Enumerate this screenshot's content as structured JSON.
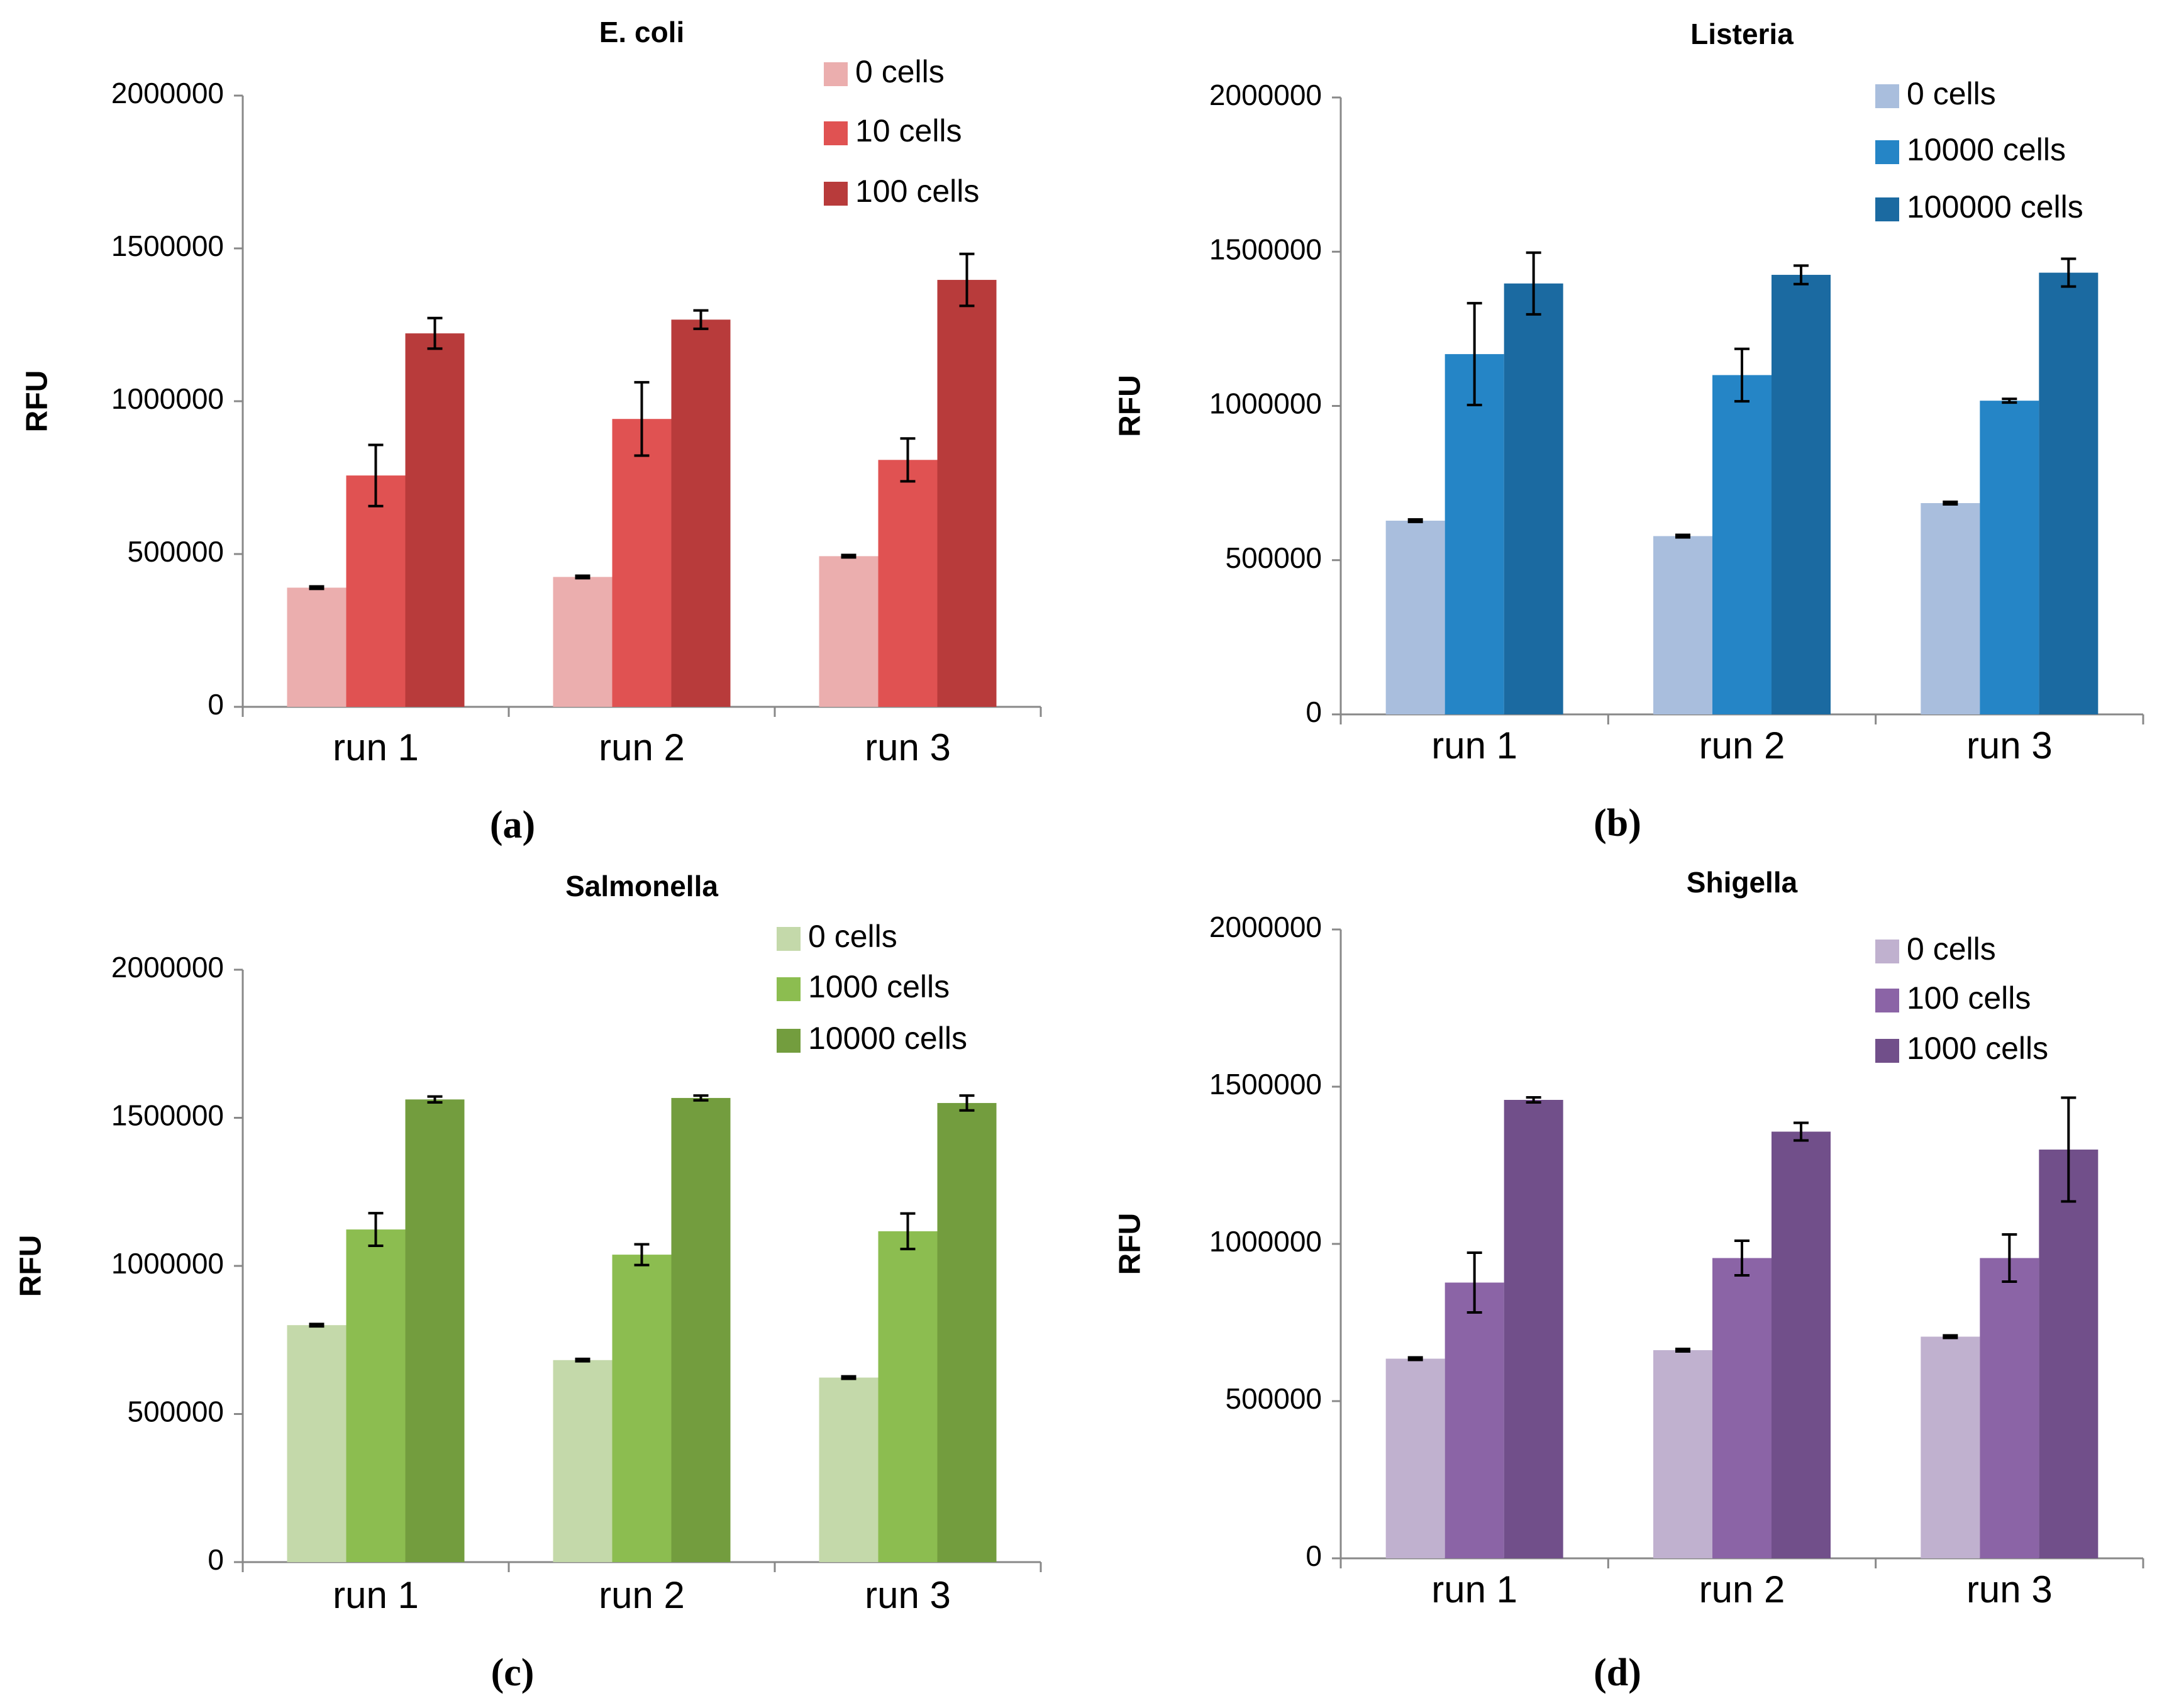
{
  "figure": {
    "panel_labels": [
      "(a)",
      "(b)",
      "(c)",
      "(d)"
    ]
  },
  "chart_data": [
    {
      "type": "bar",
      "panel": "(a)",
      "title": "E. coli",
      "xlabel": "",
      "ylabel": "RFU",
      "ylim": [
        0,
        2000000
      ],
      "yticks": [
        0,
        500000,
        1000000,
        1500000,
        2000000
      ],
      "ytick_labels": [
        "0",
        "500000",
        "1000000",
        "1500000",
        "2000000"
      ],
      "categories": [
        "run 1",
        "run 2",
        "run 3"
      ],
      "grid": false,
      "legend_position": "top-right",
      "series": [
        {
          "name": "0 cells",
          "color": "#EBAEAE",
          "values": [
            390000,
            425000,
            493000
          ],
          "errors": [
            4000,
            4000,
            4000
          ]
        },
        {
          "name": "10 cells",
          "color": "#E05252",
          "values": [
            757000,
            942000,
            808000
          ],
          "errors": [
            100000,
            120000,
            70000
          ]
        },
        {
          "name": "100 cells",
          "color": "#B83B3B",
          "values": [
            1222000,
            1267000,
            1397000
          ],
          "errors": [
            50000,
            30000,
            85000
          ]
        }
      ]
    },
    {
      "type": "bar",
      "panel": "(b)",
      "title": "Listeria",
      "xlabel": "",
      "ylabel": "RFU",
      "ylim": [
        0,
        2000000
      ],
      "yticks": [
        0,
        500000,
        1000000,
        1500000,
        2000000
      ],
      "ytick_labels": [
        "0",
        "500000",
        "1000000",
        "1500000",
        "2000000"
      ],
      "categories": [
        "run 1",
        "run 2",
        "run 3"
      ],
      "grid": false,
      "legend_position": "top-right",
      "series": [
        {
          "name": "0 cells",
          "color": "#A9BEDD",
          "values": [
            628000,
            578000,
            685000
          ],
          "errors": [
            4000,
            4000,
            4000
          ]
        },
        {
          "name": "10000 cells",
          "color": "#2585C6",
          "values": [
            1168000,
            1100000,
            1017000
          ],
          "errors": [
            165000,
            85000,
            6000
          ]
        },
        {
          "name": "100000 cells",
          "color": "#1B6AA1",
          "values": [
            1397000,
            1425000,
            1432000
          ],
          "errors": [
            100000,
            30000,
            45000
          ]
        }
      ]
    },
    {
      "type": "bar",
      "panel": "(c)",
      "title": "Salmonella",
      "xlabel": "",
      "ylabel": "RFU",
      "ylim": [
        0,
        2000000
      ],
      "yticks": [
        0,
        500000,
        1000000,
        1500000,
        2000000
      ],
      "ytick_labels": [
        "0",
        "500000",
        "1000000",
        "1500000",
        "2000000"
      ],
      "categories": [
        "run 1",
        "run 2",
        "run 3"
      ],
      "grid": false,
      "legend_position": "top-right",
      "series": [
        {
          "name": "0 cells",
          "color": "#C4D9AA",
          "values": [
            800000,
            682000,
            623000
          ],
          "errors": [
            4000,
            4000,
            4000
          ]
        },
        {
          "name": "1000 cells",
          "color": "#8CBD50",
          "values": [
            1123000,
            1038000,
            1117000
          ],
          "errors": [
            55000,
            35000,
            60000
          ]
        },
        {
          "name": "10000 cells",
          "color": "#739D3E",
          "values": [
            1562000,
            1567000,
            1550000
          ],
          "errors": [
            10000,
            8000,
            25000
          ]
        }
      ]
    },
    {
      "type": "bar",
      "panel": "(d)",
      "title": "Shigella",
      "xlabel": "",
      "ylabel": "RFU",
      "ylim": [
        0,
        2000000
      ],
      "yticks": [
        0,
        500000,
        1000000,
        1500000,
        2000000
      ],
      "ytick_labels": [
        "0",
        "500000",
        "1000000",
        "1500000",
        "2000000"
      ],
      "categories": [
        "run 1",
        "run 2",
        "run 3"
      ],
      "grid": false,
      "legend_position": "top-right",
      "series": [
        {
          "name": "0 cells",
          "color": "#C0B1CF",
          "values": [
            635000,
            662000,
            705000
          ],
          "errors": [
            4000,
            4000,
            4000
          ]
        },
        {
          "name": "100 cells",
          "color": "#8B64A6",
          "values": [
            877000,
            955000,
            955000
          ],
          "errors": [
            95000,
            55000,
            75000
          ]
        },
        {
          "name": "1000 cells",
          "color": "#714F8A",
          "values": [
            1458000,
            1357000,
            1300000
          ],
          "errors": [
            8000,
            28000,
            165000
          ]
        }
      ]
    }
  ]
}
